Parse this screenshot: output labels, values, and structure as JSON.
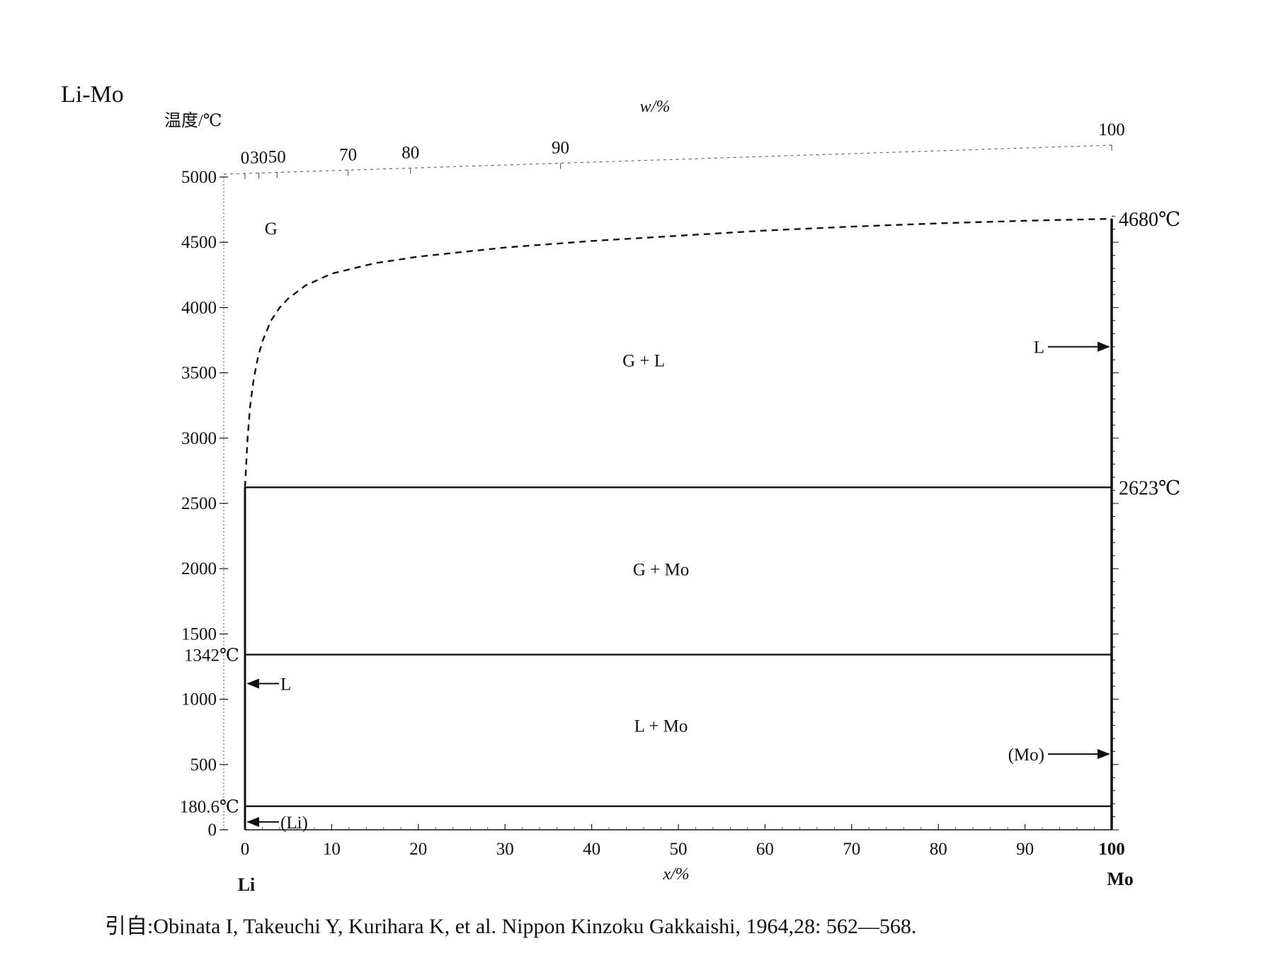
{
  "chart_data": {
    "type": "line",
    "title": "Li-Mo",
    "ylabel": "温度/℃",
    "xlabel": "x/%",
    "top_xlabel": "w/%",
    "xlim": [
      0,
      100
    ],
    "ylim": [
      0,
      5000
    ],
    "x_ticks": [
      0,
      10,
      20,
      30,
      40,
      50,
      60,
      70,
      80,
      90,
      100
    ],
    "y_ticks": [
      0,
      500,
      1000,
      1500,
      2000,
      2500,
      3000,
      3500,
      4000,
      4500,
      5000
    ],
    "y_tick_labels": [
      "0",
      "500",
      "1000",
      "1500",
      "2000",
      "2500",
      "3000",
      "3500",
      "4000",
      "4500",
      "5000"
    ],
    "x_tick_labels": [
      "0",
      "10",
      "20",
      "30",
      "40",
      "50",
      "60",
      "70",
      "80",
      "90",
      "100"
    ],
    "top_axis_ticks": [
      {
        "label": "0",
        "x": 0
      },
      {
        "label": "30",
        "x": 1.6
      },
      {
        "label": "50",
        "x": 3.7
      },
      {
        "label": "70",
        "x": 11.9
      },
      {
        "label": "80",
        "x": 19.1
      },
      {
        "label": "90",
        "x": 36.4
      },
      {
        "label": "100",
        "x": 100
      }
    ],
    "left_element": "Li",
    "right_element": "Mo",
    "special_temps": [
      {
        "label": "4680℃",
        "side": "right",
        "y": 4680
      },
      {
        "label": "2623℃",
        "side": "right",
        "y": 2623
      },
      {
        "label": "1342℃",
        "side": "left",
        "y": 1342
      },
      {
        "label": "180.6℃",
        "side": "left",
        "y": 180.6
      }
    ],
    "series": [
      {
        "style": "dashed",
        "x": [
          0,
          0.3,
          0.6,
          1,
          1.5,
          2,
          3,
          4,
          5,
          7,
          10,
          15,
          20,
          30,
          40,
          50,
          60,
          70,
          80,
          90,
          100
        ],
        "y": [
          2623,
          3000,
          3250,
          3450,
          3620,
          3740,
          3900,
          4000,
          4070,
          4170,
          4260,
          4340,
          4390,
          4460,
          4510,
          4550,
          4590,
          4620,
          4645,
          4665,
          4680
        ]
      },
      {
        "style": "solid",
        "x": [
          0,
          100
        ],
        "y": [
          2623,
          2623
        ]
      },
      {
        "style": "solid",
        "x": [
          0,
          100
        ],
        "y": [
          1342,
          1342
        ]
      },
      {
        "style": "solid",
        "x": [
          0,
          10,
          30,
          50,
          70,
          90,
          100
        ],
        "y": [
          180.6,
          180.6,
          180.6,
          180.6,
          180.6,
          180.6,
          180.6
        ]
      }
    ],
    "regions": [
      {
        "label": "G",
        "x": 3,
        "y": 4560
      },
      {
        "label": "G + L",
        "x": 46,
        "y": 3550
      },
      {
        "label": "G + Mo",
        "x": 48,
        "y": 1950
      },
      {
        "label": "L + Mo",
        "x": 48,
        "y": 750
      }
    ],
    "arrow_labels": [
      {
        "label": "L",
        "side": "right",
        "y": 3700
      },
      {
        "label": "(Mo)",
        "side": "right",
        "y": 580
      },
      {
        "label": "L",
        "side": "left",
        "y": 1120
      },
      {
        "label": "(Li)",
        "side": "left",
        "y": 60
      }
    ]
  },
  "caption": "引自:Obinata I, Takeuchi Y, Kurihara K, et al. Nippon Kinzoku Gakkaishi, 1964,28: 562—568."
}
